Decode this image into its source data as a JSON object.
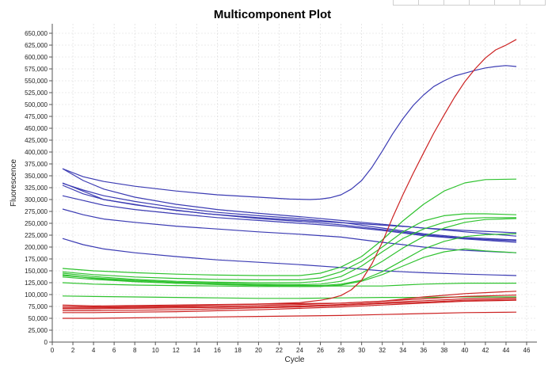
{
  "chart_data": {
    "type": "line",
    "title": "Multicomponent Plot",
    "xlabel": "Cycle",
    "ylabel": "Fluorescence",
    "xlim": [
      0,
      47
    ],
    "ylim": [
      0,
      670000
    ],
    "x_ticks": [
      "0",
      "2",
      "4",
      "6",
      "8",
      "10",
      "12",
      "14",
      "16",
      "18",
      "20",
      "22",
      "24",
      "26",
      "28",
      "30",
      "32",
      "34",
      "36",
      "38",
      "40",
      "42",
      "44",
      "46"
    ],
    "y_ticks": [
      "0",
      "25,000",
      "50,000",
      "75,000",
      "100,000",
      "125,000",
      "150,000",
      "175,000",
      "200,000",
      "225,000",
      "250,000",
      "275,000",
      "300,000",
      "325,000",
      "350,000",
      "375,000",
      "400,000",
      "425,000",
      "450,000",
      "475,000",
      "500,000",
      "525,000",
      "550,000",
      "575,000",
      "600,000",
      "625,000",
      "650,000"
    ],
    "grid": true,
    "legend": "none",
    "colors": {
      "blue": "#3b3bb3",
      "green": "#2fc22f",
      "red": "#cc2222",
      "axis": "#555555",
      "grid": "#d8d8d8"
    },
    "series": [
      {
        "color": "#3b3bb3",
        "x": [
          1,
          3,
          5,
          8,
          12,
          16,
          20,
          23,
          25,
          26,
          27,
          28,
          29,
          30,
          31,
          32,
          33,
          34,
          35,
          36,
          37,
          38,
          39,
          40,
          41,
          42,
          43,
          44,
          45
        ],
        "y": [
          365000,
          348000,
          338000,
          328000,
          318000,
          310000,
          305000,
          301000,
          300000,
          301000,
          304000,
          310000,
          322000,
          340000,
          368000,
          402000,
          438000,
          470000,
          498000,
          520000,
          538000,
          550000,
          560000,
          566000,
          572000,
          577000,
          580000,
          582000,
          580000
        ]
      },
      {
        "color": "#3b3bb3",
        "x": [
          1,
          3,
          5,
          8,
          12,
          16,
          20,
          24,
          28,
          32,
          36,
          40,
          45
        ],
        "y": [
          365000,
          340000,
          322000,
          305000,
          290000,
          279000,
          271000,
          264000,
          256000,
          248000,
          240000,
          235000,
          230000
        ]
      },
      {
        "color": "#3b3bb3",
        "x": [
          1,
          3,
          5,
          8,
          12,
          16,
          20,
          24,
          28,
          32,
          36,
          40,
          45
        ],
        "y": [
          334000,
          320000,
          308000,
          296000,
          283000,
          273000,
          266000,
          260000,
          252000,
          240000,
          228000,
          220000,
          215000
        ]
      },
      {
        "color": "#3b3bb3",
        "x": [
          1,
          3,
          5,
          8,
          12,
          16,
          20,
          24,
          28,
          32,
          36,
          40,
          45
        ],
        "y": [
          330000,
          312000,
          300000,
          289000,
          277000,
          268000,
          260000,
          254000,
          247000,
          237000,
          226000,
          218000,
          213000
        ]
      },
      {
        "color": "#3b3bb3",
        "x": [
          1,
          3,
          5,
          8,
          12,
          16,
          20,
          24,
          28,
          32,
          36,
          40,
          45
        ],
        "y": [
          308000,
          298000,
          288000,
          279000,
          270000,
          262000,
          256000,
          250000,
          244000,
          235000,
          224000,
          217000,
          210000
        ]
      },
      {
        "color": "#3b3bb3",
        "x": [
          1,
          3,
          5,
          8,
          12,
          16,
          20,
          24,
          28,
          32,
          36,
          40,
          45
        ],
        "y": [
          280000,
          268000,
          259000,
          252000,
          244000,
          238000,
          232000,
          227000,
          221000,
          210000,
          200000,
          193000,
          188000
        ]
      },
      {
        "color": "#3b3bb3",
        "x": [
          1,
          3,
          5,
          8,
          12,
          16,
          20,
          24,
          28,
          32,
          36,
          40,
          45
        ],
        "y": [
          218000,
          205000,
          196000,
          188000,
          180000,
          173000,
          168000,
          163000,
          157000,
          150000,
          146000,
          143000,
          140000
        ]
      },
      {
        "color": "#3b3bb3",
        "x": [
          1,
          5,
          10,
          15,
          20,
          25,
          30,
          35,
          40,
          45
        ],
        "y": [
          335000,
          300000,
          283000,
          270000,
          262000,
          255000,
          249000,
          242000,
          232000,
          223000
        ]
      },
      {
        "color": "#2fc22f",
        "x": [
          1,
          4,
          8,
          12,
          16,
          20,
          24,
          26,
          28,
          30,
          32,
          34,
          36,
          38,
          40,
          42,
          45
        ],
        "y": [
          155000,
          150000,
          146000,
          143000,
          141000,
          140000,
          140000,
          145000,
          158000,
          180000,
          215000,
          255000,
          290000,
          318000,
          335000,
          342000,
          343000
        ]
      },
      {
        "color": "#2fc22f",
        "x": [
          1,
          4,
          8,
          12,
          16,
          20,
          24,
          26,
          28,
          30,
          32,
          34,
          36,
          38,
          40,
          42,
          45
        ],
        "y": [
          148000,
          142000,
          137000,
          134000,
          132000,
          131000,
          131000,
          135000,
          148000,
          170000,
          200000,
          232000,
          255000,
          266000,
          270000,
          270000,
          268000
        ]
      },
      {
        "color": "#2fc22f",
        "x": [
          1,
          4,
          8,
          12,
          16,
          20,
          24,
          26,
          28,
          30,
          32,
          34,
          36,
          38,
          40,
          42,
          45
        ],
        "y": [
          145000,
          138000,
          132000,
          128000,
          126000,
          125000,
          125000,
          128000,
          138000,
          160000,
          190000,
          218000,
          238000,
          252000,
          260000,
          262000,
          262000
        ]
      },
      {
        "color": "#2fc22f",
        "x": [
          1,
          4,
          8,
          12,
          16,
          20,
          24,
          26,
          28,
          30,
          32,
          34,
          36,
          38,
          40,
          42,
          45
        ],
        "y": [
          140000,
          135000,
          130000,
          126000,
          124000,
          122000,
          121000,
          122000,
          128000,
          145000,
          170000,
          198000,
          222000,
          240000,
          252000,
          258000,
          260000
        ]
      },
      {
        "color": "#2fc22f",
        "x": [
          1,
          4,
          8,
          12,
          16,
          20,
          24,
          26,
          28,
          30,
          32,
          34,
          36,
          38,
          40,
          42,
          45
        ],
        "y": [
          137000,
          132000,
          127000,
          124000,
          122000,
          120000,
          119000,
          119000,
          122000,
          130000,
          148000,
          172000,
          196000,
          212000,
          222000,
          226000,
          228000
        ]
      },
      {
        "color": "#2fc22f",
        "x": [
          1,
          4,
          8,
          12,
          16,
          20,
          24,
          26,
          28,
          30,
          32,
          34,
          36,
          38,
          40,
          42,
          45
        ],
        "y": [
          142000,
          134000,
          128000,
          124000,
          121000,
          119000,
          117000,
          117000,
          120000,
          128000,
          142000,
          160000,
          178000,
          190000,
          196000,
          192000,
          188000
        ]
      },
      {
        "color": "#2fc22f",
        "x": [
          1,
          4,
          8,
          12,
          16,
          20,
          24,
          28,
          32,
          36,
          40,
          45
        ],
        "y": [
          125000,
          122000,
          120000,
          119000,
          118000,
          117000,
          117000,
          118000,
          118000,
          122000,
          124000,
          124000
        ]
      },
      {
        "color": "#2fc22f",
        "x": [
          1,
          4,
          8,
          12,
          16,
          20,
          24,
          28,
          32,
          36,
          40,
          45
        ],
        "y": [
          97000,
          96000,
          95000,
          94000,
          93000,
          92000,
          92000,
          93000,
          94000,
          94000,
          95000,
          95000
        ]
      },
      {
        "color": "#cc2222",
        "x": [
          1,
          4,
          8,
          12,
          16,
          20,
          24,
          26,
          27,
          28,
          29,
          30,
          31,
          32,
          33,
          34,
          35,
          36,
          37,
          38,
          39,
          40,
          41,
          42,
          43,
          44,
          45
        ],
        "y": [
          75000,
          74000,
          75000,
          76000,
          78000,
          80000,
          83000,
          88000,
          92000,
          98000,
          110000,
          130000,
          165000,
          210000,
          262000,
          310000,
          355000,
          398000,
          440000,
          478000,
          515000,
          548000,
          575000,
          598000,
          615000,
          625000,
          637000
        ]
      },
      {
        "color": "#cc2222",
        "x": [
          1,
          4,
          8,
          12,
          16,
          20,
          24,
          28,
          32,
          36,
          40,
          45
        ],
        "y": [
          72000,
          72000,
          73000,
          74000,
          75000,
          77000,
          79000,
          82000,
          86000,
          91000,
          96000,
          99000
        ]
      },
      {
        "color": "#cc2222",
        "x": [
          1,
          4,
          8,
          12,
          16,
          20,
          24,
          28,
          32,
          36,
          40,
          45
        ],
        "y": [
          70000,
          70000,
          71000,
          72000,
          73000,
          74000,
          76000,
          79000,
          83000,
          87000,
          91000,
          93000
        ]
      },
      {
        "color": "#cc2222",
        "x": [
          1,
          4,
          8,
          12,
          16,
          20,
          24,
          28,
          32,
          36,
          40,
          45
        ],
        "y": [
          66000,
          66000,
          67000,
          68000,
          70000,
          72000,
          74000,
          77000,
          81000,
          84000,
          88000,
          90000
        ]
      },
      {
        "color": "#cc2222",
        "x": [
          1,
          4,
          8,
          12,
          16,
          20,
          24,
          28,
          32,
          36,
          40,
          45
        ],
        "y": [
          62000,
          62000,
          63000,
          64000,
          66000,
          68000,
          71000,
          74000,
          78000,
          82000,
          86000,
          88000
        ]
      },
      {
        "color": "#cc2222",
        "x": [
          1,
          4,
          8,
          12,
          16,
          20,
          24,
          28,
          32,
          36,
          40,
          45
        ],
        "y": [
          50000,
          50000,
          51000,
          52000,
          53000,
          54000,
          55000,
          56000,
          58000,
          60000,
          62000,
          63000
        ]
      },
      {
        "color": "#cc2222",
        "x": [
          1,
          4,
          8,
          12,
          16,
          20,
          24,
          28,
          32,
          36,
          40,
          45
        ],
        "y": [
          78000,
          76000,
          77000,
          78000,
          79000,
          80000,
          81000,
          82000,
          86000,
          95000,
          102000,
          107000
        ]
      }
    ]
  }
}
